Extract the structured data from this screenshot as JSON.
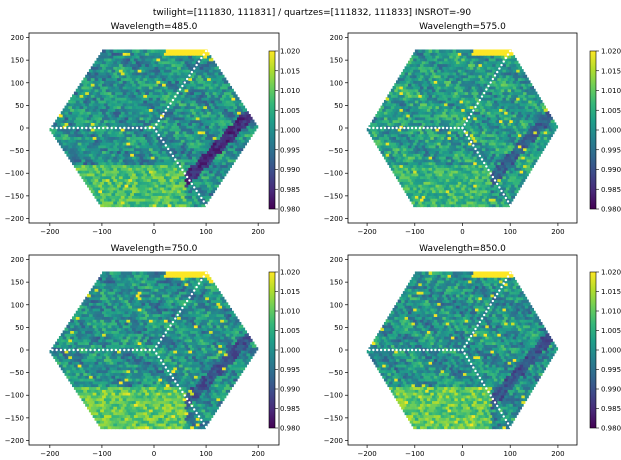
{
  "suptitle": "twilight=[111830, 111831] / quartzes=[111832, 111833]    INSROT=-90",
  "colors": {
    "viridis": [
      "#440154",
      "#482878",
      "#3e4989",
      "#31688e",
      "#26828e",
      "#1f9e89",
      "#35b779",
      "#6ece58",
      "#b5de2b",
      "#fde725"
    ],
    "masked_white": "#ffffff",
    "saturated_yellow": "#fde725"
  },
  "chart_data": [
    {
      "type": "heatmap",
      "subtype": "hexagonal fiber map",
      "title": "Wavelength=485.0",
      "xticks": [
        -200,
        -100,
        0,
        100,
        200
      ],
      "yticks": [
        -200,
        -150,
        -100,
        -50,
        0,
        50,
        100,
        150,
        200
      ],
      "xlim": [
        -240,
        240
      ],
      "ylim": [
        -210,
        210
      ],
      "colorbar": {
        "vmin": 0.98,
        "vmax": 1.02,
        "ticks": [
          "0.980",
          "0.985",
          "0.990",
          "0.995",
          "1.000",
          "1.005",
          "1.010",
          "1.015",
          "1.020"
        ]
      },
      "median_level": 1.0,
      "lower_left_level": 1.008,
      "dark_band_level": 0.985
    },
    {
      "type": "heatmap",
      "subtype": "hexagonal fiber map",
      "title": "Wavelength=575.0",
      "xticks": [
        -200,
        -100,
        0,
        100,
        200
      ],
      "yticks": [
        -200,
        -150,
        -100,
        -50,
        0,
        50,
        100,
        150,
        200
      ],
      "xlim": [
        -240,
        240
      ],
      "ylim": [
        -210,
        210
      ],
      "colorbar": {
        "vmin": 0.98,
        "vmax": 1.02,
        "ticks": [
          "0.980",
          "0.985",
          "0.990",
          "0.995",
          "1.000",
          "1.005",
          "1.010",
          "1.015",
          "1.020"
        ]
      },
      "median_level": 1.002,
      "lower_left_level": 1.006,
      "dark_band_level": 0.992
    },
    {
      "type": "heatmap",
      "subtype": "hexagonal fiber map",
      "title": "Wavelength=750.0",
      "xticks": [
        -200,
        -100,
        0,
        100,
        200
      ],
      "yticks": [
        -200,
        -150,
        -100,
        -50,
        0,
        50,
        100,
        150,
        200
      ],
      "xlim": [
        -240,
        240
      ],
      "ylim": [
        -210,
        210
      ],
      "colorbar": {
        "vmin": 0.98,
        "vmax": 1.02,
        "ticks": [
          "0.980",
          "0.985",
          "0.990",
          "0.995",
          "1.000",
          "1.005",
          "1.010",
          "1.015",
          "1.020"
        ]
      },
      "median_level": 1.0,
      "lower_left_level": 1.01,
      "dark_band_level": 0.99
    },
    {
      "type": "heatmap",
      "subtype": "hexagonal fiber map",
      "title": "Wavelength=850.0",
      "xticks": [
        -200,
        -100,
        0,
        100,
        200
      ],
      "yticks": [
        -200,
        -150,
        -100,
        -50,
        0,
        50,
        100,
        150,
        200
      ],
      "xlim": [
        -240,
        240
      ],
      "ylim": [
        -210,
        210
      ],
      "colorbar": {
        "vmin": 0.98,
        "vmax": 1.02,
        "ticks": [
          "0.980",
          "0.985",
          "0.990",
          "0.995",
          "1.000",
          "1.005",
          "1.010",
          "1.015",
          "1.020"
        ]
      },
      "median_level": 1.0,
      "lower_left_level": 1.01,
      "dark_band_level": 0.99
    }
  ]
}
